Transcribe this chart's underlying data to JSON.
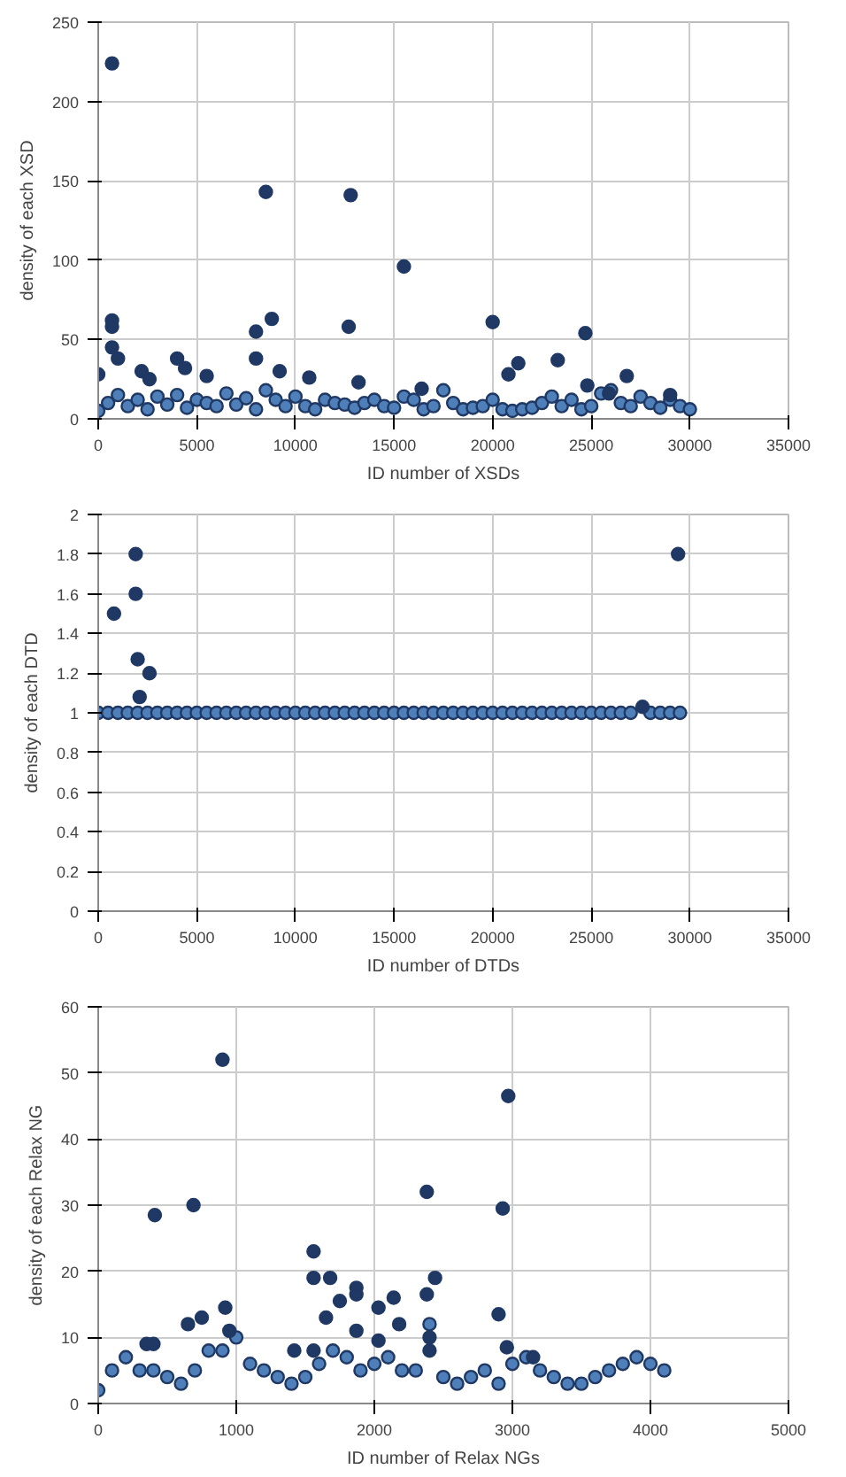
{
  "chart_data": [
    {
      "type": "scatter",
      "xlabel": "ID number of XSDs",
      "ylabel": "density of each XSD",
      "xlim": [
        0,
        35000
      ],
      "ylim": [
        0,
        250
      ],
      "xticks": [
        0,
        5000,
        10000,
        15000,
        20000,
        25000,
        30000,
        35000
      ],
      "yticks": [
        0,
        50,
        100,
        150,
        200,
        250
      ],
      "grid": true,
      "marker": "circle",
      "series": [
        {
          "color": "#4f7fb8",
          "x": [
            0,
            500,
            1000,
            1500,
            2000,
            2500,
            3000,
            3500,
            4000,
            4500,
            5000,
            5500,
            6000,
            6500,
            7000,
            7500,
            8000,
            8500,
            9000,
            9500,
            10000,
            10500,
            11000,
            11500,
            12000,
            12500,
            13000,
            13500,
            14000,
            14500,
            15000,
            15500,
            16000,
            16500,
            17000,
            17500,
            18000,
            18500,
            19000,
            19500,
            20000,
            20500,
            21000,
            21500,
            22000,
            22500,
            23000,
            23500,
            24000,
            24500,
            25000,
            25500,
            26000,
            26500,
            27000,
            27500,
            28000,
            28500,
            29000,
            29500,
            30000
          ],
          "values": [
            5,
            10,
            15,
            8,
            12,
            6,
            14,
            9,
            15,
            7,
            12,
            10,
            8,
            16,
            9,
            13,
            6,
            18,
            12,
            8,
            14,
            8,
            6,
            12,
            10,
            9,
            7,
            10,
            12,
            8,
            7,
            14,
            12,
            6,
            8,
            18,
            10,
            6,
            7,
            8,
            12,
            6,
            5,
            6,
            7,
            10,
            14,
            8,
            12,
            6,
            8,
            16,
            18,
            10,
            8,
            14,
            10,
            7,
            12,
            8,
            6
          ]
        },
        {
          "color": "#1f3864",
          "x": [
            700,
            700,
            700,
            700,
            1000,
            0,
            2200,
            2600,
            4000,
            4400,
            5500,
            8000,
            8500,
            8800,
            8000,
            9200,
            10700,
            12700,
            12800,
            13200,
            15500,
            16400,
            20000,
            20800,
            21300,
            23300,
            24700,
            24800,
            25900,
            26800,
            29000
          ],
          "values": [
            224,
            62,
            58,
            45,
            38,
            28,
            30,
            25,
            38,
            32,
            27,
            55,
            143,
            63,
            38,
            30,
            26,
            58,
            141,
            23,
            96,
            19,
            61,
            28,
            35,
            37,
            54,
            21,
            16,
            27,
            15
          ]
        }
      ]
    },
    {
      "type": "scatter",
      "xlabel": "ID number of DTDs",
      "ylabel": "density of each DTD",
      "xlim": [
        0,
        35000
      ],
      "ylim": [
        0,
        2
      ],
      "xticks": [
        0,
        5000,
        10000,
        15000,
        20000,
        25000,
        30000,
        35000
      ],
      "yticks": [
        0,
        0.2,
        0.4,
        0.6,
        0.8,
        1,
        1.2,
        1.4,
        1.6,
        1.8,
        2
      ],
      "grid": true,
      "marker": "circle",
      "series": [
        {
          "color": "#4f7fb8",
          "x": [
            0,
            500,
            1000,
            1500,
            2000,
            2500,
            3000,
            3500,
            4000,
            4500,
            5000,
            5500,
            6000,
            6500,
            7000,
            7500,
            8000,
            8500,
            9000,
            9500,
            10000,
            10500,
            11000,
            11500,
            12000,
            12500,
            13000,
            13500,
            14000,
            14500,
            15000,
            15500,
            16000,
            16500,
            17000,
            17500,
            18000,
            18500,
            19000,
            19500,
            20000,
            20500,
            21000,
            21500,
            22000,
            22500,
            23000,
            23500,
            24000,
            24500,
            25000,
            25500,
            26000,
            26500,
            27000,
            28000,
            28500,
            29000,
            29500
          ],
          "values": [
            1,
            1,
            1,
            1,
            1,
            1,
            1,
            1,
            1,
            1,
            1,
            1,
            1,
            1,
            1,
            1,
            1,
            1,
            1,
            1,
            1,
            1,
            1,
            1,
            1,
            1,
            1,
            1,
            1,
            1,
            1,
            1,
            1,
            1,
            1,
            1,
            1,
            1,
            1,
            1,
            1,
            1,
            1,
            1,
            1,
            1,
            1,
            1,
            1,
            1,
            1,
            1,
            1,
            1,
            1,
            1,
            1,
            1,
            1
          ]
        },
        {
          "color": "#1f3864",
          "x": [
            800,
            1900,
            1900,
            2000,
            2600,
            2100,
            27600,
            29400
          ],
          "values": [
            1.5,
            1.8,
            1.6,
            1.27,
            1.2,
            1.08,
            1.03,
            1.8
          ]
        }
      ]
    },
    {
      "type": "scatter",
      "xlabel": "ID number of Relax NGs",
      "ylabel": "density of each Relax NG",
      "xlim": [
        0,
        5000
      ],
      "ylim": [
        0,
        60
      ],
      "xticks": [
        0,
        1000,
        2000,
        3000,
        4000,
        5000
      ],
      "yticks": [
        0,
        10,
        20,
        30,
        40,
        50,
        60
      ],
      "grid": true,
      "marker": "circle",
      "series": [
        {
          "color": "#4f7fb8",
          "x": [
            0,
            100,
            200,
            300,
            400,
            500,
            600,
            700,
            800,
            900,
            1000,
            1100,
            1200,
            1300,
            1400,
            1500,
            1600,
            1700,
            1800,
            1900,
            2000,
            2100,
            2200,
            2300,
            2400,
            2500,
            2600,
            2700,
            2800,
            2900,
            3000,
            3100,
            3200,
            3300,
            3400,
            3500,
            3600,
            3700,
            3800,
            3900,
            4000,
            4100
          ],
          "values": [
            2,
            5,
            7,
            5,
            5,
            4,
            3,
            5,
            8,
            8,
            10,
            6,
            5,
            4,
            3,
            4,
            6,
            8,
            7,
            5,
            6,
            7,
            5,
            5,
            12,
            4,
            3,
            4,
            5,
            3,
            6,
            7,
            5,
            4,
            3,
            3,
            4,
            5,
            6,
            7,
            6,
            5
          ]
        },
        {
          "color": "#1f3864",
          "x": [
            900,
            2970,
            2380,
            2930,
            690,
            410,
            1560,
            1560,
            1680,
            1750,
            1650,
            1870,
            1870,
            1870,
            2030,
            2030,
            2140,
            2180,
            2380,
            2440,
            2400,
            2400,
            2900,
            920,
            650,
            750,
            350,
            400,
            950,
            1420,
            1560,
            2960,
            3150
          ],
          "values": [
            52,
            46.5,
            32,
            29.5,
            30,
            28.5,
            23,
            19,
            19,
            15.5,
            13,
            17.5,
            16.5,
            11,
            14.5,
            9.5,
            16,
            12,
            16.5,
            19,
            10,
            8,
            13.5,
            14.5,
            12,
            13,
            9,
            9,
            11,
            8,
            8,
            8.5,
            7
          ]
        }
      ]
    }
  ]
}
